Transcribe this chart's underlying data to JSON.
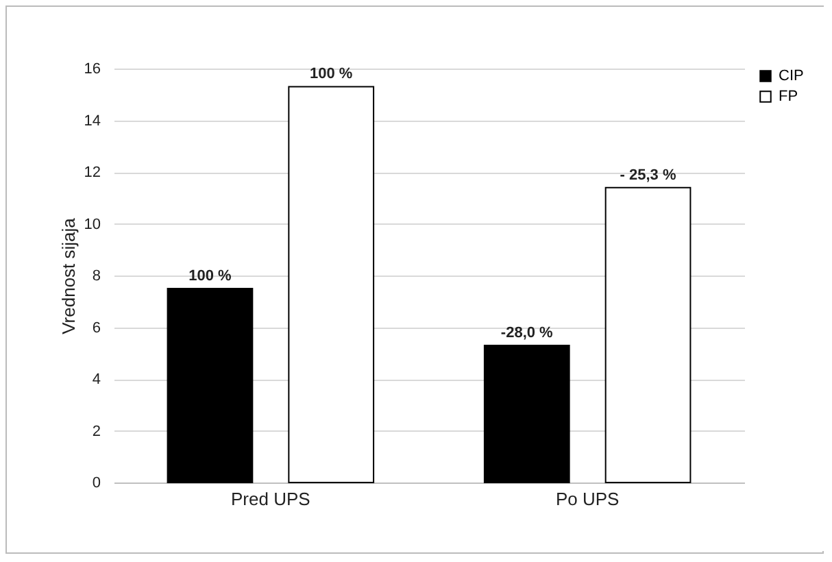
{
  "chart_data": {
    "type": "bar",
    "ylabel": "Vrednost sijaja",
    "categories": [
      "Pred UPS",
      "Po UPS"
    ],
    "series": [
      {
        "name": "CIP",
        "color": "#000000",
        "values": [
          7.5,
          5.3
        ]
      },
      {
        "name": "FP",
        "color": "#ffffff",
        "values": [
          15.3,
          11.4
        ]
      }
    ],
    "annotations": [
      "100 %",
      "100 %",
      "-28,0 %",
      "- 25,3 %"
    ],
    "ylim": [
      0,
      16
    ],
    "yticks": [
      0,
      2,
      4,
      6,
      8,
      10,
      12,
      14,
      16
    ],
    "grid": "y",
    "legend": "right"
  }
}
